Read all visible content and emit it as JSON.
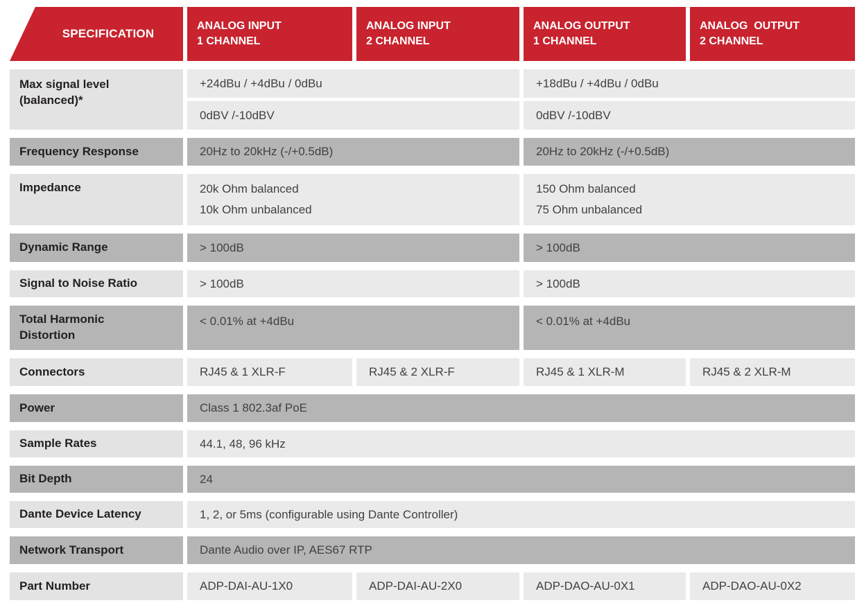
{
  "header": {
    "specification": "SPECIFICATION",
    "columns": [
      {
        "label": "ANALOG INPUT\n1 CHANNEL"
      },
      {
        "label": "ANALOG INPUT\n2 CHANNEL"
      },
      {
        "label": "ANALOG OUTPUT\n1 CHANNEL"
      },
      {
        "label": "ANALOG  OUTPUT\n2 CHANNEL"
      }
    ]
  },
  "rows": {
    "max_signal": {
      "label": "Max signal level\n(balanced)*",
      "sub1": {
        "input": "+24dBu / +4dBu / 0dBu",
        "output": "+18dBu / +4dBu / 0dBu"
      },
      "sub2": {
        "input": "0dBV /-10dBV",
        "output": "0dBV /-10dBV"
      }
    },
    "frequency_response": {
      "label": "Frequency Response",
      "input": "20Hz to 20kHz (-/+0.5dB)",
      "output": "20Hz to 20kHz (-/+0.5dB)"
    },
    "impedance": {
      "label": "Impedance",
      "input": "20k Ohm balanced\n10k Ohm unbalanced",
      "output": "150 Ohm balanced\n75 Ohm unbalanced"
    },
    "dynamic_range": {
      "label": "Dynamic Range",
      "input": "> 100dB",
      "output": "> 100dB"
    },
    "snr": {
      "label": "Signal to Noise Ratio",
      "input": "> 100dB",
      "output": "> 100dB"
    },
    "thd": {
      "label": "Total Harmonic\nDistortion",
      "input": "< 0.01% at +4dBu",
      "output": "< 0.01% at +4dBu"
    },
    "connectors": {
      "label": "Connectors",
      "cells": [
        "RJ45 & 1 XLR-F",
        "RJ45 & 2 XLR-F",
        "RJ45 & 1 XLR-M",
        "RJ45 & 2 XLR-M"
      ]
    },
    "power": {
      "label": "Power",
      "value": "Class 1 802.3af PoE"
    },
    "sample_rates": {
      "label": "Sample Rates",
      "value": "44.1, 48, 96 kHz"
    },
    "bit_depth": {
      "label": "Bit Depth",
      "value": "24"
    },
    "latency": {
      "label": "Dante Device Latency",
      "value": "1, 2, or 5ms (configurable using Dante Controller)"
    },
    "network_transport": {
      "label": "Network Transport",
      "value": "Dante Audio over IP, AES67 RTP"
    },
    "part_number": {
      "label": "Part Number",
      "cells": [
        "ADP-DAI-AU-1X0",
        "ADP-DAI-AU-2X0",
        "ADP-DAO-AU-0X1",
        "ADP-DAO-AU-0X2"
      ]
    }
  },
  "colors": {
    "header_red": "#C8232E",
    "header_text": "#FFFFFF",
    "row_light": "#EAEAEB",
    "row_light_label": "#E3E3E4",
    "row_gray": "#B5B5B6",
    "label_text": "#231F20",
    "value_text": "#414042"
  }
}
